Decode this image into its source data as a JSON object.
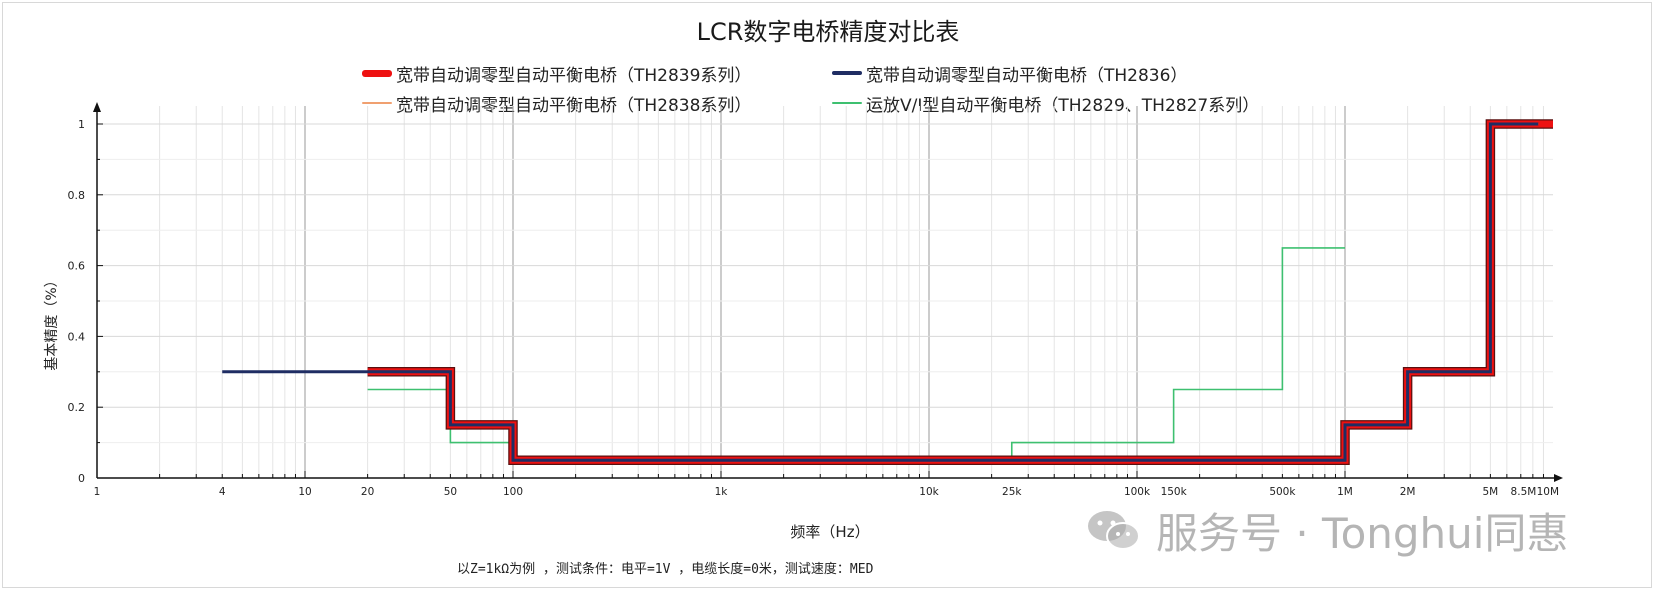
{
  "title": "LCR数字电桥精度对比表",
  "note": "以Z=1kΩ为例 ，测试条件：电平=1V ，电缆长度=0米，测试速度：MED",
  "watermark": {
    "text": "服务号 · Tonghui同惠",
    "icon": "wechat-icon"
  },
  "legend": [
    {
      "label": "宽带自动调零型自动平衡电桥（TH2839系列）",
      "color": "#ee1111"
    },
    {
      "label": "宽带自动调零型自动平衡电桥（TH2836）",
      "color": "#1f2d63"
    },
    {
      "label": "宽带自动调零型自动平衡电桥（TH2838系列）",
      "color": "#f0a070"
    },
    {
      "label": "运放V/I型自动平衡电桥（TH2829、TH2827系列）",
      "color": "#3ec070"
    }
  ],
  "chart_data": {
    "type": "line",
    "title": "LCR数字电桥精度对比表",
    "xlabel": "频率（Hz）",
    "ylabel": "基本精度（%）",
    "xscale": "log",
    "xlim": [
      1,
      10000000
    ],
    "ylim": [
      0,
      1
    ],
    "grid": true,
    "legend_position": "top",
    "x_ticks": [
      {
        "value": 1,
        "label": "1"
      },
      {
        "value": 4,
        "label": "4"
      },
      {
        "value": 10,
        "label": "10"
      },
      {
        "value": 20,
        "label": "20"
      },
      {
        "value": 50,
        "label": "50"
      },
      {
        "value": 100,
        "label": "100"
      },
      {
        "value": 1000,
        "label": "1k"
      },
      {
        "value": 10000,
        "label": "10k"
      },
      {
        "value": 25000,
        "label": "25k"
      },
      {
        "value": 100000,
        "label": "100k"
      },
      {
        "value": 150000,
        "label": "150k"
      },
      {
        "value": 500000,
        "label": "500k"
      },
      {
        "value": 1000000,
        "label": "1M"
      },
      {
        "value": 2000000,
        "label": "2M"
      },
      {
        "value": 5000000,
        "label": "5M"
      },
      {
        "value": 8500000,
        "label": "8.5M"
      },
      {
        "value": 10000000,
        "label": "10M"
      }
    ],
    "y_ticks": [
      {
        "value": 0,
        "label": "0"
      },
      {
        "value": 0.2,
        "label": "0.2"
      },
      {
        "value": 0.4,
        "label": "0.4"
      },
      {
        "value": 0.6,
        "label": "0.6"
      },
      {
        "value": 0.8,
        "label": "0.8"
      },
      {
        "value": 1,
        "label": "1"
      }
    ],
    "series": [
      {
        "name": "运放V/I型自动平衡电桥（TH2829、TH2827系列）",
        "color": "#3ec070",
        "width": 1.6,
        "x": [
          20,
          50,
          50,
          100,
          100,
          25000,
          25000,
          150000,
          150000,
          500000,
          500000,
          1000000
        ],
        "y": [
          0.25,
          0.25,
          0.1,
          0.1,
          0.05,
          0.05,
          0.1,
          0.1,
          0.25,
          0.25,
          0.65,
          0.65
        ]
      },
      {
        "name": "宽带自动调零型自动平衡电桥（TH2839系列）",
        "color": "#ee1111",
        "width": 7,
        "x": [
          20,
          50,
          50,
          100,
          100,
          1000000,
          1000000,
          2000000,
          2000000,
          5000000,
          5000000,
          10000000
        ],
        "y": [
          0.3,
          0.3,
          0.15,
          0.15,
          0.05,
          0.05,
          0.15,
          0.15,
          0.3,
          0.3,
          1,
          1
        ]
      },
      {
        "name": "宽带自动调零型自动平衡电桥（TH2838系列）",
        "color": "#f0a070",
        "width": 1.4,
        "x": [
          20,
          50,
          50,
          100,
          100,
          1000000,
          1000000,
          2000000,
          2000000,
          5000000,
          5000000,
          8500000
        ],
        "y": [
          0.3,
          0.3,
          0.15,
          0.15,
          0.05,
          0.05,
          0.15,
          0.15,
          0.3,
          0.3,
          1,
          1
        ]
      },
      {
        "name": "宽带自动调零型自动平衡电桥（TH2836）",
        "color": "#1f2d63",
        "width": 3,
        "x": [
          4,
          50,
          50,
          100,
          100,
          1000000,
          1000000,
          2000000,
          2000000,
          5000000,
          5000000,
          8500000
        ],
        "y": [
          0.3,
          0.3,
          0.15,
          0.15,
          0.05,
          0.05,
          0.15,
          0.15,
          0.3,
          0.3,
          1,
          1
        ]
      }
    ]
  }
}
